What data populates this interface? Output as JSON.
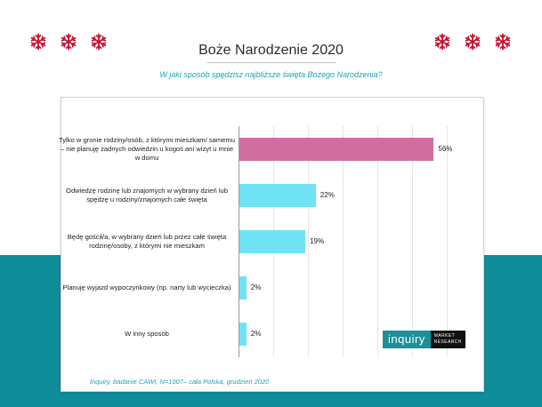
{
  "header": {
    "title": "Boże Narodzenie 2020",
    "question": "W jaki sposób  spędzisz  najbliższe święta Bożego Narodzenia?"
  },
  "decor": {
    "snowflake_icon": "snowflake-icon",
    "snowflake_color": "#c8102e",
    "band_color": "#0f8c9a"
  },
  "logo": {
    "name": "inquiry",
    "tagline_line1": "MARKET",
    "tagline_line2": "RESEARCH"
  },
  "source": "Inquiry, badanie CAWI, N=1007– cała Polska, grudzień 2020",
  "chart_data": {
    "type": "bar",
    "orientation": "horizontal",
    "categories": [
      "Tylko w gronie rodziny/osób, z którymi mieszkam/ samemu – nie planuję żadnych odwiedzin u kogoś ani wizyt u mnie w domu",
      "Odwiedzę rodzinę lub znajomych w wybrany dzień lub spędzę u rodziny/znajomych całe święta",
      "Będę gościł/a, w wybrany dzień lub przez całe święta rodzinę/osoby, z którymi nie mieszkam",
      "Planuję wyjazd wypoczynkowy (np. narty lub wycieczka)",
      "W inny sposób"
    ],
    "values": [
      56,
      22,
      19,
      2,
      2
    ],
    "value_labels": [
      "56%",
      "22%",
      "19%",
      "2%",
      "2%"
    ],
    "unit": "%",
    "colors": [
      "#d06f9f",
      "#6fe3f3",
      "#6fe3f3",
      "#6fe3f3",
      "#6fe3f3"
    ],
    "xlim": [
      0,
      60
    ],
    "grid": true,
    "legend": "none"
  }
}
